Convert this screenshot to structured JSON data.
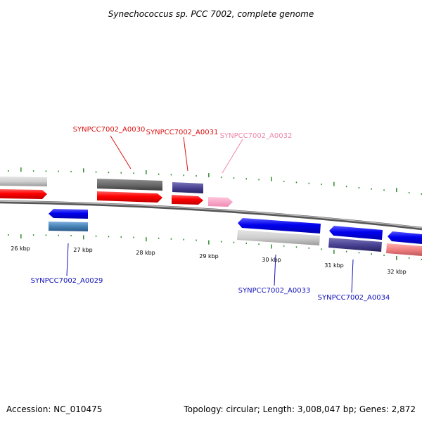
{
  "title": "Synechococcus sp. PCC 7002, complete genome",
  "footer": {
    "accession": "Accession: NC_010475",
    "summary": "Topology: circular; Length: 3,008,047 bp; Genes: 2,872"
  },
  "colors": {
    "tick": "#2e8b2e",
    "backbone": "#7a7a7a",
    "red_label": "#dd1111",
    "pink_label": "#ee88aa",
    "blue_label": "#1111bb"
  },
  "scale": {
    "labels": [
      "26 kbp",
      "27 kbp",
      "28 kbp",
      "29 kbp",
      "30 kbp",
      "31 kbp",
      "32 kbp"
    ]
  },
  "gene_labels": [
    {
      "id": "a0029",
      "text": "SYNPCC7002_A0029",
      "color": "blue"
    },
    {
      "id": "a0030",
      "text": "SYNPCC7002_A0030",
      "color": "red"
    },
    {
      "id": "a0031",
      "text": "SYNPCC7002_A0031",
      "color": "red"
    },
    {
      "id": "a0032",
      "text": "SYNPCC7002_A0032",
      "color": "pink"
    },
    {
      "id": "a0033",
      "text": "SYNPCC7002_A0033",
      "color": "blue"
    },
    {
      "id": "a0034",
      "text": "SYNPCC7002_A0034",
      "color": "blue"
    }
  ]
}
